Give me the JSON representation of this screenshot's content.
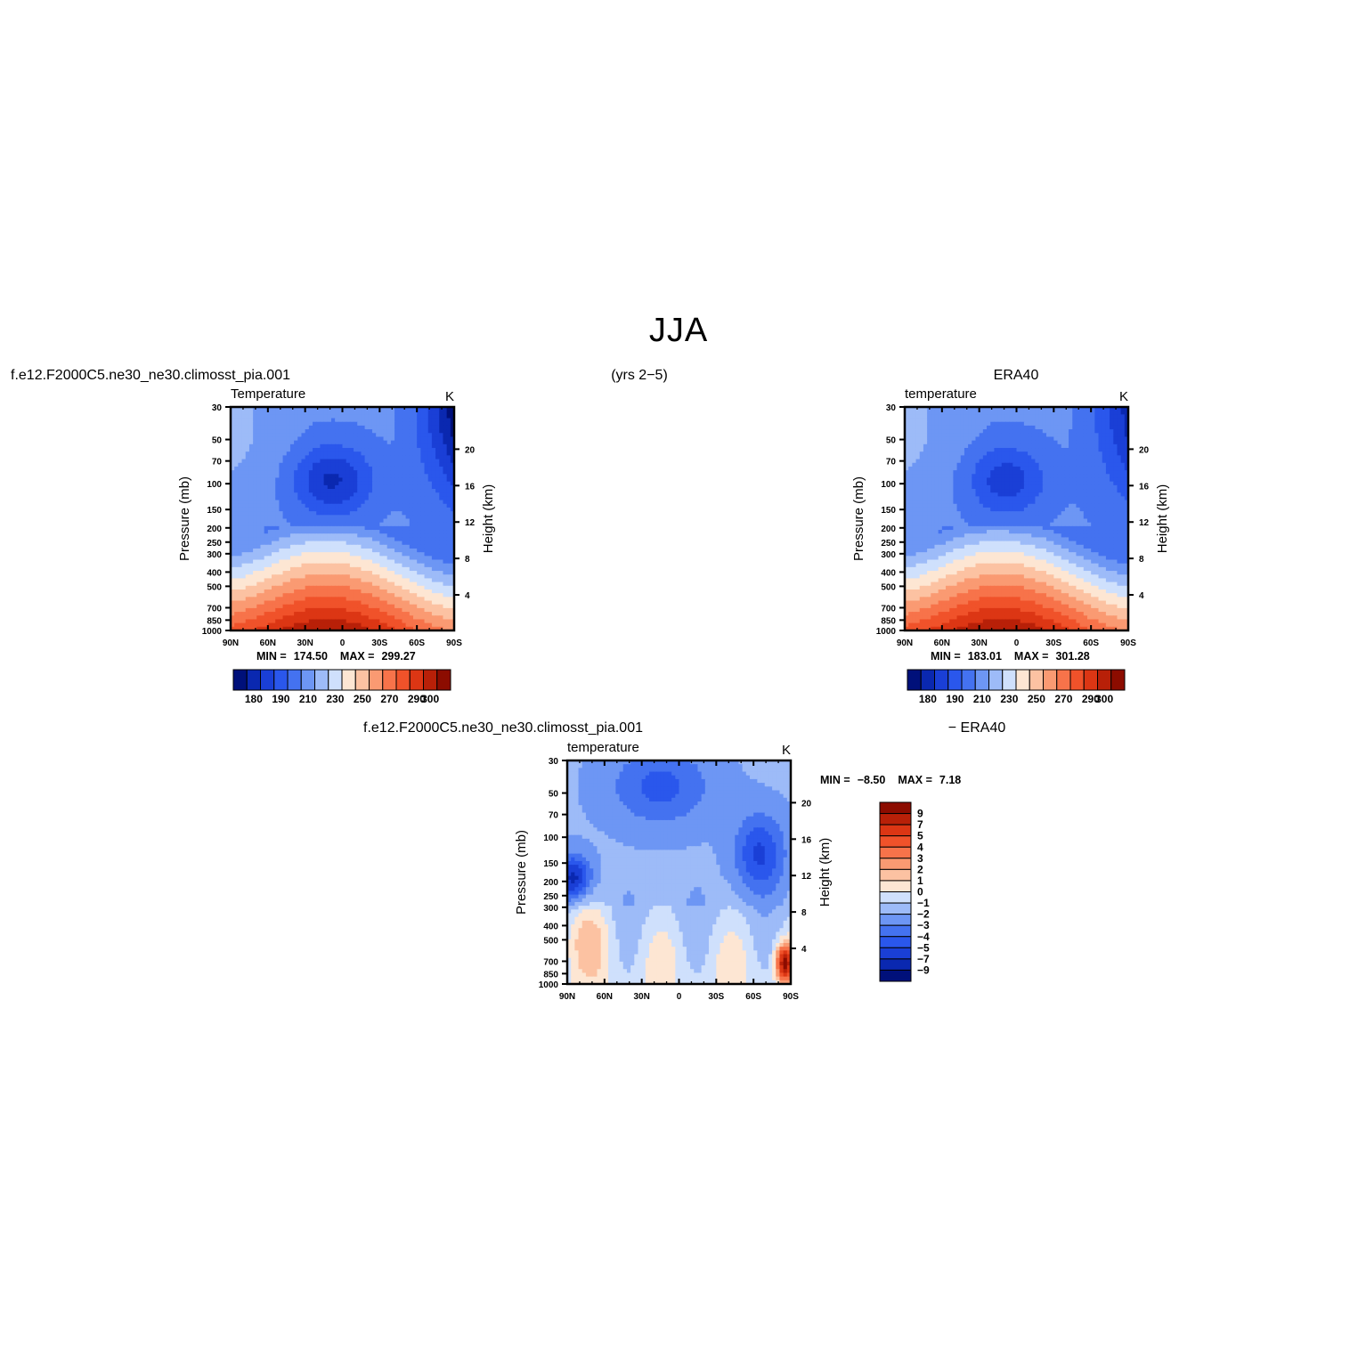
{
  "figure": {
    "title": "JJA",
    "header_left": "f.e12.F2000C5.ne30_ne30.climosst_pia.001",
    "header_mid": "(yrs 2−5)",
    "header_right": "ERA40",
    "diff_header_left": "f.e12.F2000C5.ne30_ne30.climosst_pia.001",
    "diff_header_right": "− ERA40"
  },
  "chart_data": [
    {
      "id": "model",
      "type": "heatmap",
      "subtitle_left": "Temperature",
      "subtitle_right": "K",
      "xlabel": "",
      "ylabel": "Pressure (mb)",
      "ylabel_right": "Height (km)",
      "x_ticks": [
        "90N",
        "60N",
        "30N",
        "0",
        "30S",
        "60S",
        "90S"
      ],
      "y_ticks": [
        "30",
        "50",
        "70",
        "100",
        "150",
        "200",
        "250",
        "300",
        "400",
        "500",
        "700",
        "850",
        "1000"
      ],
      "height_ticks": [
        "4",
        "8",
        "12",
        "16",
        "20"
      ],
      "scale": {
        "min": 175,
        "max": 305,
        "levels": 16
      },
      "stats": {
        "min_label": "MIN =",
        "min": "174.50",
        "max_label": "MAX =",
        "max": "299.27"
      },
      "colorbar": {
        "orientation": "horizontal",
        "labels": [
          "180",
          "190",
          "210",
          "230",
          "250",
          "270",
          "290",
          "300"
        ]
      },
      "field": "temperature"
    },
    {
      "id": "obs",
      "type": "heatmap",
      "subtitle_left": "temperature",
      "subtitle_right": "K",
      "xlabel": "",
      "ylabel": "Pressure (mb)",
      "ylabel_right": "Height (km)",
      "x_ticks": [
        "90N",
        "60N",
        "30N",
        "0",
        "30S",
        "60S",
        "90S"
      ],
      "y_ticks": [
        "30",
        "50",
        "70",
        "100",
        "150",
        "200",
        "250",
        "300",
        "400",
        "500",
        "700",
        "850",
        "1000"
      ],
      "height_ticks": [
        "4",
        "8",
        "12",
        "16",
        "20"
      ],
      "scale": {
        "min": 175,
        "max": 305,
        "levels": 16
      },
      "stats": {
        "min_label": "MIN =",
        "min": "183.01",
        "max_label": "MAX =",
        "max": "301.28"
      },
      "colorbar": {
        "orientation": "horizontal",
        "labels": [
          "180",
          "190",
          "210",
          "230",
          "250",
          "270",
          "290",
          "300"
        ]
      },
      "field": "temperature"
    },
    {
      "id": "diff",
      "type": "heatmap",
      "subtitle_left": "temperature",
      "subtitle_right": "K",
      "xlabel": "",
      "ylabel": "Pressure (mb)",
      "ylabel_right": "Height (km)",
      "x_ticks": [
        "90N",
        "60N",
        "30N",
        "0",
        "30S",
        "60S",
        "90S"
      ],
      "y_ticks": [
        "30",
        "50",
        "70",
        "100",
        "150",
        "200",
        "250",
        "300",
        "400",
        "500",
        "700",
        "850",
        "1000"
      ],
      "height_ticks": [
        "4",
        "8",
        "12",
        "16",
        "20"
      ],
      "scale": {
        "min": -9.5,
        "max": 9.5,
        "levels": 16
      },
      "stats": {
        "min_label": "MIN =",
        "min": "−8.50",
        "max_label": "MAX =",
        "max": "7.18"
      },
      "colorbar": {
        "orientation": "vertical",
        "labels": [
          "9",
          "7",
          "5",
          "4",
          "3",
          "2",
          "1",
          "0",
          "−1",
          "−2",
          "−3",
          "−4",
          "−5",
          "−7",
          "−9"
        ]
      },
      "field": "difference"
    }
  ],
  "palette": [
    "#00107a",
    "#0a28b0",
    "#1a3fd6",
    "#2a57ec",
    "#4472f0",
    "#6d96f4",
    "#9dbbf8",
    "#cfe0fc",
    "#fde6d3",
    "#fcc2a2",
    "#fa9a72",
    "#f7734a",
    "#f0522a",
    "#dc3614",
    "#b82008",
    "#8c0c00"
  ]
}
